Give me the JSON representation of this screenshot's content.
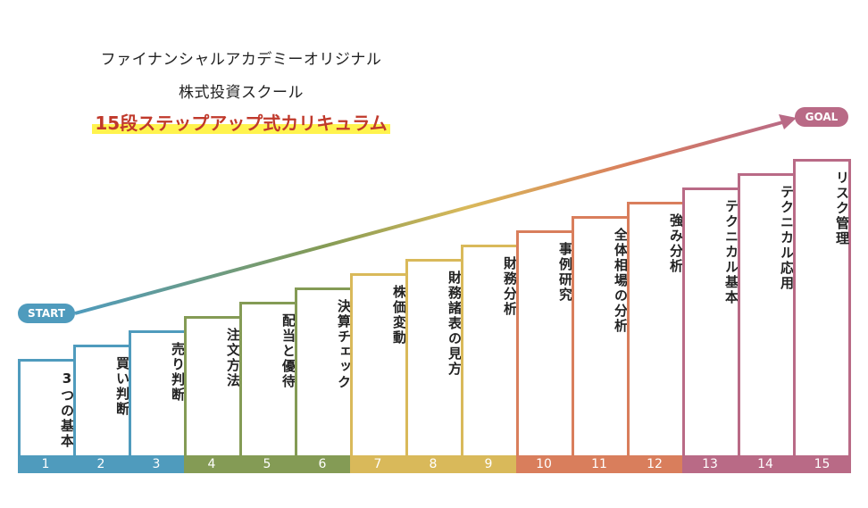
{
  "header": {
    "line1": "ファイナンシャルアカデミーオリジナル",
    "line2": "株式投資スクール",
    "line3": "15段ステップアップ式カリキュラム"
  },
  "start_label": "START",
  "goal_label": "GOAL",
  "steps": [
    {
      "num": "1",
      "label": "3つの基本",
      "color": "#4f9bbd"
    },
    {
      "num": "2",
      "label": "買い判断",
      "color": "#4f9bbd"
    },
    {
      "num": "3",
      "label": "売り判断",
      "color": "#4f9bbd"
    },
    {
      "num": "4",
      "label": "注文方法",
      "color": "#849b55"
    },
    {
      "num": "5",
      "label": "配当と優待",
      "color": "#849b55"
    },
    {
      "num": "6",
      "label": "決算チェック",
      "color": "#849b55"
    },
    {
      "num": "7",
      "label": "株価変動",
      "color": "#d9b95a"
    },
    {
      "num": "8",
      "label": "財務諸表の見方",
      "color": "#d9b95a"
    },
    {
      "num": "9",
      "label": "財務分析",
      "color": "#d9b95a"
    },
    {
      "num": "10",
      "label": "事例研究",
      "color": "#d97e5c"
    },
    {
      "num": "11",
      "label": "全体相場の分析",
      "color": "#d97e5c"
    },
    {
      "num": "12",
      "label": "強み分析",
      "color": "#d97e5c"
    },
    {
      "num": "13",
      "label": "テクニカル基本",
      "color": "#b96a86"
    },
    {
      "num": "14",
      "label": "テクニカル応用",
      "color": "#b96a86"
    },
    {
      "num": "15",
      "label": "リスク管理",
      "color": "#b96a86"
    }
  ]
}
